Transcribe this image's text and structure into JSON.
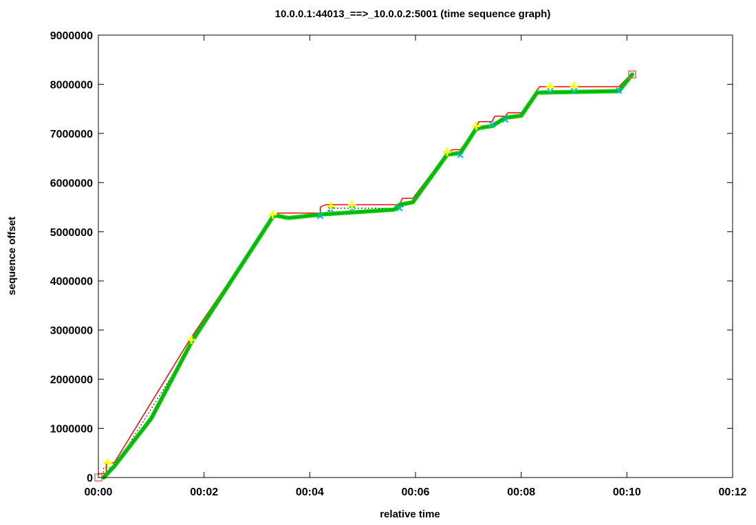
{
  "chart_data": {
    "type": "line",
    "title": "10.0.0.1:44013_==>_10.0.0.2:5001 (time sequence graph)",
    "xlabel": "relative time",
    "ylabel": "sequence offset",
    "xlim": [
      0,
      12
    ],
    "ylim": [
      0,
      9000000
    ],
    "x_ticks": [
      "00:00",
      "00:02",
      "00:04",
      "00:06",
      "00:08",
      "00:10",
      "00:12"
    ],
    "y_ticks": [
      "0",
      "1000000",
      "2000000",
      "3000000",
      "4000000",
      "5000000",
      "6000000",
      "7000000",
      "8000000",
      "9000000"
    ],
    "grid": false,
    "colors": {
      "window": "#ff0000",
      "ack": "#000000",
      "data": "#00cc00",
      "sack": "#00b4e6",
      "retrans": "#ffff00",
      "synfin": "#ff6060"
    },
    "series": [
      {
        "role": "window",
        "style": "step",
        "points": [
          [
            0.0,
            80000
          ],
          [
            0.15,
            80000
          ],
          [
            0.15,
            300000
          ],
          [
            0.3,
            300000
          ],
          [
            1.7,
            2750000
          ],
          [
            1.76,
            2850000
          ],
          [
            3.3,
            5300000
          ],
          [
            3.4,
            5380000
          ],
          [
            4.2,
            5380000
          ],
          [
            4.2,
            5500000
          ],
          [
            4.3,
            5550000
          ],
          [
            5.7,
            5550000
          ],
          [
            5.75,
            5680000
          ],
          [
            5.95,
            5680000
          ],
          [
            6.6,
            6600000
          ],
          [
            6.7,
            6670000
          ],
          [
            6.85,
            6670000
          ],
          [
            7.15,
            7100000
          ],
          [
            7.2,
            7240000
          ],
          [
            7.45,
            7240000
          ],
          [
            7.5,
            7350000
          ],
          [
            7.7,
            7350000
          ],
          [
            7.75,
            7420000
          ],
          [
            8.0,
            7420000
          ],
          [
            8.3,
            7880000
          ],
          [
            8.35,
            7950000
          ],
          [
            9.85,
            7950000
          ],
          [
            10.1,
            8230000
          ]
        ]
      },
      {
        "role": "ack",
        "style": "dotted-step",
        "points": [
          [
            0.0,
            0
          ],
          [
            0.1,
            0
          ],
          [
            0.1,
            200000
          ],
          [
            0.3,
            200000
          ],
          [
            1.76,
            2700000
          ],
          [
            3.3,
            5250000
          ],
          [
            3.35,
            5300000
          ],
          [
            4.2,
            5300000
          ],
          [
            4.4,
            5480000
          ],
          [
            5.7,
            5480000
          ],
          [
            5.95,
            5600000
          ],
          [
            6.6,
            6560000
          ],
          [
            6.85,
            6560000
          ],
          [
            7.15,
            7050000
          ],
          [
            7.45,
            7160000
          ],
          [
            7.7,
            7280000
          ],
          [
            8.0,
            7350000
          ],
          [
            8.3,
            7800000
          ],
          [
            8.4,
            7870000
          ],
          [
            9.85,
            7870000
          ],
          [
            10.1,
            8200000
          ]
        ]
      },
      {
        "role": "data",
        "style": "thick",
        "points": [
          [
            0.1,
            0
          ],
          [
            0.3,
            230000
          ],
          [
            1.0,
            1200000
          ],
          [
            1.76,
            2750000
          ],
          [
            3.3,
            5300000
          ],
          [
            3.35,
            5330000
          ],
          [
            3.6,
            5280000
          ],
          [
            4.2,
            5350000
          ],
          [
            5.6,
            5450000
          ],
          [
            5.7,
            5550000
          ],
          [
            5.95,
            5600000
          ],
          [
            6.6,
            6570000
          ],
          [
            6.85,
            6600000
          ],
          [
            7.15,
            7100000
          ],
          [
            7.45,
            7150000
          ],
          [
            7.7,
            7320000
          ],
          [
            8.0,
            7360000
          ],
          [
            8.3,
            7830000
          ],
          [
            9.85,
            7860000
          ],
          [
            10.1,
            8200000
          ]
        ]
      },
      {
        "role": "sack",
        "style": "marks",
        "points": [
          [
            4.2,
            5320000
          ],
          [
            4.4,
            5450000
          ],
          [
            4.8,
            5470000
          ],
          [
            5.7,
            5480000
          ],
          [
            6.85,
            6560000
          ],
          [
            7.45,
            7180000
          ],
          [
            7.7,
            7280000
          ],
          [
            8.55,
            7860000
          ],
          [
            9.0,
            7860000
          ],
          [
            9.85,
            7870000
          ]
        ]
      },
      {
        "role": "retrans",
        "style": "marks",
        "points": [
          [
            0.18,
            300000
          ],
          [
            1.76,
            2800000
          ],
          [
            3.3,
            5350000
          ],
          [
            4.4,
            5520000
          ],
          [
            4.8,
            5540000
          ],
          [
            6.6,
            6620000
          ],
          [
            7.15,
            7150000
          ],
          [
            8.55,
            7950000
          ],
          [
            9.0,
            7960000
          ]
        ]
      },
      {
        "role": "synfin",
        "style": "square",
        "points": [
          [
            0.0,
            0
          ],
          [
            10.1,
            8200000
          ]
        ]
      }
    ]
  }
}
